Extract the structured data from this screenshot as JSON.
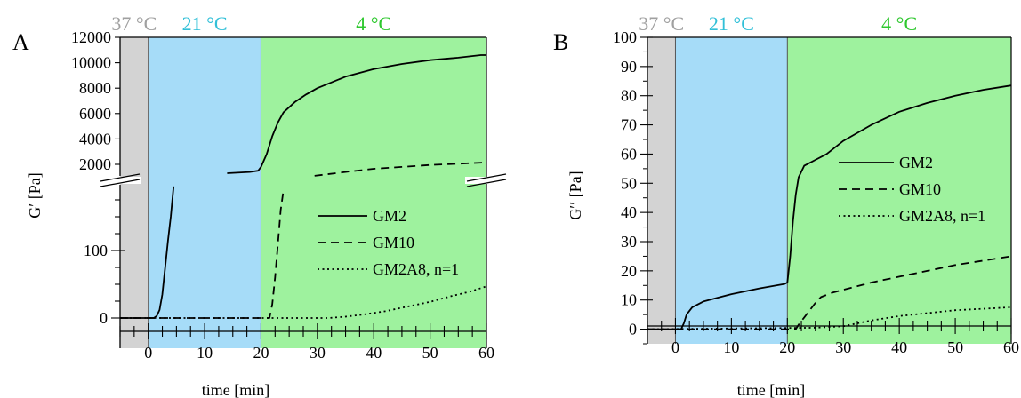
{
  "chart_data": [
    {
      "type": "line",
      "panel_label": "A",
      "xlabel": "time [min]",
      "ylabel": "G′ [Pa]",
      "xlim": [
        -5,
        60
      ],
      "x_ticks": [
        "0",
        "10",
        "20",
        "30",
        "40",
        "50",
        "60"
      ],
      "y_axis_broken": true,
      "y_ticks_lower": [
        "0",
        "100"
      ],
      "y_ticks_upper": [
        "2000",
        "4000",
        "6000",
        "8000",
        "10000",
        "12000"
      ],
      "regions": [
        {
          "label": "37 °C",
          "from": -5,
          "to": 0,
          "color": "#d3d3d3",
          "label_color": "#a0a0a0"
        },
        {
          "label": "21 °C",
          "from": 0,
          "to": 20,
          "color": "#a6dcf8",
          "label_color": "#32c0d8"
        },
        {
          "label": "4 °C",
          "from": 20,
          "to": 60,
          "color": "#9ef29e",
          "label_color": "#2ec82e"
        }
      ],
      "legend": {
        "position": "center-right",
        "entries": [
          "GM2",
          "GM10",
          "GM2A8, n=1"
        ]
      },
      "series": [
        {
          "name": "GM2",
          "style": "solid",
          "segments": [
            [
              [
                -5,
                0
              ],
              [
                1,
                0
              ],
              [
                1.5,
                3
              ],
              [
                2,
                12
              ],
              [
                2.5,
                35
              ],
              [
                3,
                75
              ],
              [
                3.5,
                115
              ],
              [
                4,
                150
              ],
              [
                4.5,
                195
              ]
            ],
            [
              [
                14,
                1300
              ],
              [
                18,
                1400
              ],
              [
                19.5,
                1500
              ],
              [
                20,
                1800
              ],
              [
                21,
                2800
              ],
              [
                22,
                4200
              ],
              [
                23,
                5300
              ],
              [
                24,
                6100
              ],
              [
                26,
                6900
              ],
              [
                28,
                7500
              ],
              [
                30,
                8000
              ],
              [
                35,
                8900
              ],
              [
                40,
                9500
              ],
              [
                45,
                9900
              ],
              [
                50,
                10200
              ],
              [
                55,
                10400
              ],
              [
                59,
                10600
              ],
              [
                60,
                10600
              ]
            ]
          ]
        },
        {
          "name": "GM10",
          "style": "dashed",
          "segments": [
            [
              [
                -5,
                0
              ],
              [
                21.5,
                0
              ],
              [
                22,
                20
              ],
              [
                22.5,
                60
              ],
              [
                23,
                110
              ],
              [
                23.5,
                160
              ],
              [
                24,
                190
              ]
            ],
            [
              [
                29.5,
                1100
              ],
              [
                35,
                1400
              ],
              [
                40,
                1650
              ],
              [
                45,
                1800
              ],
              [
                50,
                1950
              ],
              [
                55,
                2050
              ],
              [
                60,
                2150
              ]
            ]
          ]
        },
        {
          "name": "GM2A8, n=1",
          "style": "dotted",
          "segments": [
            [
              [
                -5,
                0
              ],
              [
                32,
                0
              ],
              [
                35,
                2
              ],
              [
                38,
                5
              ],
              [
                42,
                10
              ],
              [
                46,
                17
              ],
              [
                50,
                24
              ],
              [
                54,
                33
              ],
              [
                57,
                39
              ],
              [
                60,
                47
              ]
            ]
          ]
        }
      ]
    },
    {
      "type": "line",
      "panel_label": "B",
      "xlabel": "time [min]",
      "ylabel": "G′′ [Pa]",
      "xlim": [
        -5,
        60
      ],
      "ylim": [
        -5,
        100
      ],
      "x_ticks": [
        "0",
        "10",
        "20",
        "30",
        "40",
        "50",
        "60"
      ],
      "y_ticks": [
        "0",
        "10",
        "20",
        "30",
        "40",
        "50",
        "60",
        "70",
        "80",
        "90",
        "100"
      ],
      "regions": [
        {
          "label": "37 °C",
          "from": -5,
          "to": 0,
          "color": "#d3d3d3",
          "label_color": "#a0a0a0"
        },
        {
          "label": "21 °C",
          "from": 0,
          "to": 20,
          "color": "#a6dcf8",
          "label_color": "#32c0d8"
        },
        {
          "label": "4 °C",
          "from": 20,
          "to": 60,
          "color": "#9ef29e",
          "label_color": "#2ec82e"
        }
      ],
      "legend": {
        "position": "center-right",
        "entries": [
          "GM2",
          "GM10",
          "GM2A8, n=1"
        ]
      },
      "series": [
        {
          "name": "GM2",
          "style": "solid",
          "segments": [
            [
              [
                -5,
                0
              ],
              [
                1,
                0
              ],
              [
                1.5,
                2
              ],
              [
                2,
                5
              ],
              [
                3,
                7.5
              ],
              [
                5,
                9.5
              ],
              [
                8,
                11
              ],
              [
                10,
                12
              ],
              [
                15,
                14
              ],
              [
                19.5,
                15.5
              ],
              [
                20,
                16
              ],
              [
                20.5,
                25
              ],
              [
                21,
                37
              ],
              [
                21.5,
                46
              ],
              [
                22,
                52
              ],
              [
                23,
                56
              ],
              [
                24,
                57
              ],
              [
                25,
                58
              ],
              [
                27,
                60
              ],
              [
                30,
                64.5
              ],
              [
                35,
                70
              ],
              [
                40,
                74.5
              ],
              [
                45,
                77.5
              ],
              [
                50,
                80
              ],
              [
                55,
                82
              ],
              [
                60,
                83.5
              ]
            ]
          ]
        },
        {
          "name": "GM10",
          "style": "dashed",
          "segments": [
            [
              [
                -5,
                0
              ],
              [
                21.5,
                0
              ],
              [
                22,
                1.5
              ],
              [
                23,
                4
              ],
              [
                24,
                6.5
              ],
              [
                25,
                9
              ],
              [
                26,
                11
              ],
              [
                28,
                12.5
              ],
              [
                30,
                13.5
              ],
              [
                35,
                16
              ],
              [
                40,
                18
              ],
              [
                45,
                20
              ],
              [
                50,
                22
              ],
              [
                55,
                23.5
              ],
              [
                60,
                25
              ]
            ]
          ]
        },
        {
          "name": "GM2A8, n=1",
          "style": "dotted",
          "segments": [
            [
              [
                -5,
                0
              ],
              [
                25,
                0.5
              ],
              [
                30,
                1
              ],
              [
                35,
                3
              ],
              [
                40,
                4.5
              ],
              [
                45,
                5.5
              ],
              [
                50,
                6.5
              ],
              [
                55,
                7
              ],
              [
                60,
                7.5
              ]
            ]
          ]
        }
      ]
    }
  ]
}
